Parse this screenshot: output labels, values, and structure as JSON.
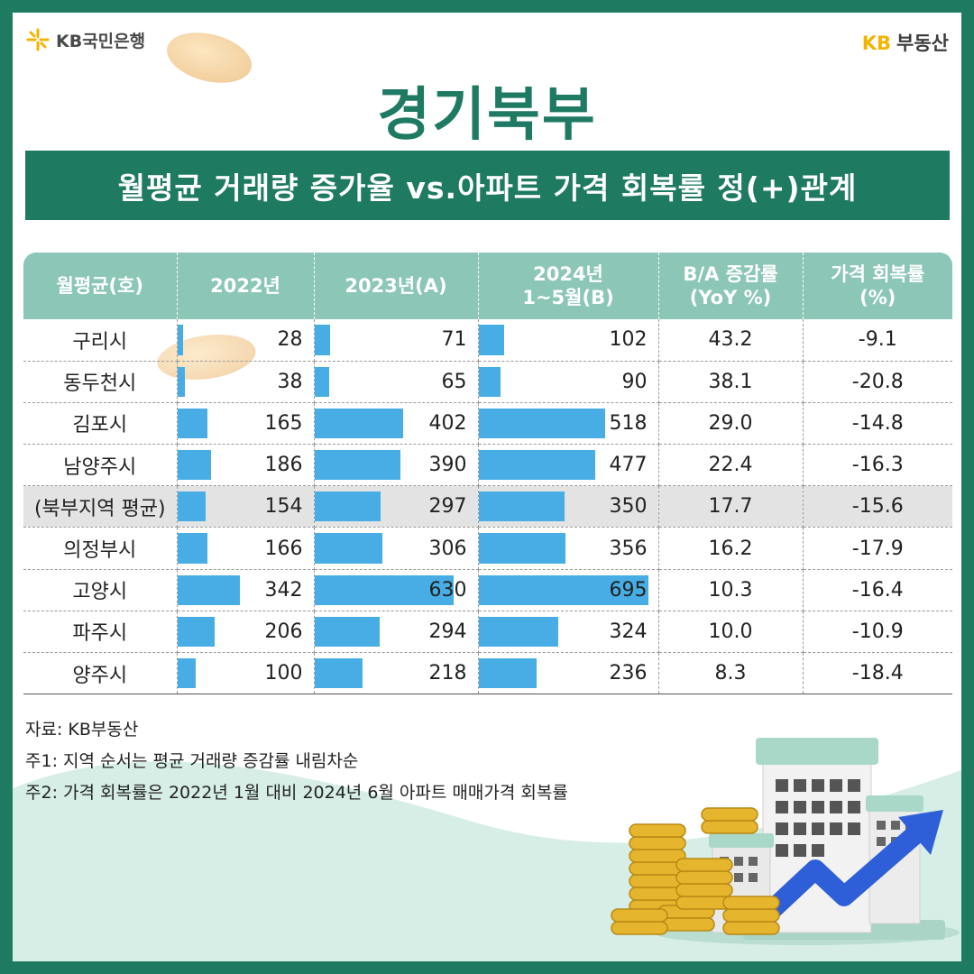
{
  "brand": {
    "left_logo": "KB국민은행",
    "right_logo_kb": "KB",
    "right_logo_text": "부동산",
    "accent_color": "#1f7a62",
    "bar_color": "#47ade4",
    "header_color": "#8cc6b6"
  },
  "title": "경기북부",
  "subtitle": "월평균 거래량 증가율 vs.아파트 가격 회복률 정(+)관계",
  "table": {
    "headers": [
      {
        "lines": [
          "월평균(호)"
        ]
      },
      {
        "lines": [
          "2022년"
        ]
      },
      {
        "lines": [
          "2023년(A)"
        ]
      },
      {
        "lines": [
          "2024년",
          "1~5월(B)"
        ]
      },
      {
        "lines": [
          "B/A 증감률",
          "(YoY %)"
        ]
      },
      {
        "lines": [
          "가격 회복률",
          "(%)"
        ]
      }
    ],
    "rows": [
      {
        "name": "구리시",
        "y2022": 28,
        "y2023": 71,
        "y2024": 102,
        "yoy": "43.2",
        "recovery": "-9.1",
        "highlight": false
      },
      {
        "name": "동두천시",
        "y2022": 38,
        "y2023": 65,
        "y2024": 90,
        "yoy": "38.1",
        "recovery": "-20.8",
        "highlight": false
      },
      {
        "name": "김포시",
        "y2022": 165,
        "y2023": 402,
        "y2024": 518,
        "yoy": "29.0",
        "recovery": "-14.8",
        "highlight": false
      },
      {
        "name": "남양주시",
        "y2022": 186,
        "y2023": 390,
        "y2024": 477,
        "yoy": "22.4",
        "recovery": "-16.3",
        "highlight": false
      },
      {
        "name": "(북부지역 평균)",
        "y2022": 154,
        "y2023": 297,
        "y2024": 350,
        "yoy": "17.7",
        "recovery": "-15.6",
        "highlight": true
      },
      {
        "name": "의정부시",
        "y2022": 166,
        "y2023": 306,
        "y2024": 356,
        "yoy": "16.2",
        "recovery": "-17.9",
        "highlight": false
      },
      {
        "name": "고양시",
        "y2022": 342,
        "y2023": 630,
        "y2024": 695,
        "yoy": "10.3",
        "recovery": "-16.4",
        "highlight": false
      },
      {
        "name": "파주시",
        "y2022": 206,
        "y2023": 294,
        "y2024": 324,
        "yoy": "10.0",
        "recovery": "-10.9",
        "highlight": false
      },
      {
        "name": "양주시",
        "y2022": 100,
        "y2023": 218,
        "y2024": 236,
        "yoy": "8.3",
        "recovery": "-18.4",
        "highlight": false
      }
    ],
    "bar_scale_max": 695
  },
  "notes": [
    "자료: KB부동산",
    "주1: 지역 순서는 평균 거래량 증감률 내림차순",
    "주2: 가격 회복률은 2022년 1월 대비 2024년 6월 아파트 매매가격 회복률"
  ]
}
